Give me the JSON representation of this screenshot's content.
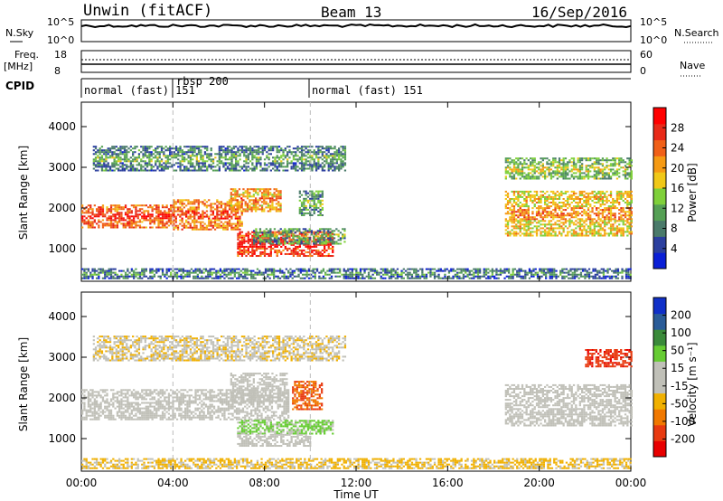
{
  "header": {
    "site": "Unwin (fitACF)",
    "beam": "Beam 13",
    "date": "16/Sep/2016"
  },
  "nsky": {
    "label": "N.Sky",
    "right_label": "N.Search",
    "left_ticks": [
      "10^5",
      "10^0"
    ],
    "right_ticks": [
      "10^5",
      "10^0"
    ]
  },
  "freq": {
    "label_line1": "Freq.",
    "label_line2": "[MHz]",
    "left_ticks": [
      "18",
      "8"
    ],
    "right_ticks": [
      "60",
      "0"
    ],
    "right_label": "Nave"
  },
  "cpid": {
    "label": "CPID",
    "segments": [
      {
        "text": "normal (fast) 151"
      },
      {
        "text": "rbsp 200"
      },
      {
        "text": "normal (fast) 151"
      }
    ]
  },
  "colors": {
    "power_scale": [
      "#0a1fd6",
      "#2b3f9e",
      "#4a7a6a",
      "#55a055",
      "#7fd03a",
      "#f0c818",
      "#f59a14",
      "#f06018",
      "#e82a18",
      "#ff0000"
    ],
    "velocity_scale": [
      "#1030c8",
      "#2a5c98",
      "#3a8a3a",
      "#66cc33",
      "#c0c0b8",
      "#c0c0b8",
      "#f0b000",
      "#f07800",
      "#e83a10",
      "#e80000"
    ]
  },
  "chart_data": [
    {
      "type": "heatmap",
      "name": "power",
      "xlabel": "",
      "ylabel": "Slant Range [km]",
      "x_ticks": [
        "00:00",
        "04:00",
        "08:00",
        "12:00",
        "16:00",
        "20:00",
        "00:00"
      ],
      "y_ticks": [
        "1000",
        "2000",
        "3000",
        "4000"
      ],
      "ylim": [
        200,
        4600
      ],
      "xlim": [
        0,
        24
      ],
      "colorbar": {
        "label": "Power [dB]",
        "ticks": [
          "4",
          "8",
          "12",
          "16",
          "20",
          "24",
          "28"
        ],
        "range": [
          0,
          32
        ]
      },
      "regions": [
        {
          "t0": 0.0,
          "t1": 4.0,
          "r0": 1500,
          "r1": 2050,
          "v": 24
        },
        {
          "t0": 4.0,
          "t1": 7.0,
          "r0": 1450,
          "r1": 2200,
          "v": 22
        },
        {
          "t0": 6.5,
          "t1": 8.7,
          "r0": 1900,
          "r1": 2450,
          "v": 20
        },
        {
          "t0": 6.8,
          "t1": 11.0,
          "r0": 800,
          "r1": 1400,
          "v": 26
        },
        {
          "t0": 7.5,
          "t1": 11.5,
          "r0": 1100,
          "r1": 1500,
          "v": 10
        },
        {
          "t0": 9.5,
          "t1": 10.5,
          "r0": 1800,
          "r1": 2400,
          "v": 10
        },
        {
          "t0": 0.5,
          "t1": 11.5,
          "r0": 2900,
          "r1": 3500,
          "v": 8
        },
        {
          "t0": 0.0,
          "t1": 24.0,
          "r0": 250,
          "r1": 500,
          "v": 6
        },
        {
          "t0": 18.5,
          "t1": 24.0,
          "r0": 1300,
          "r1": 2400,
          "v": 18
        },
        {
          "t0": 18.5,
          "t1": 24.0,
          "r0": 2700,
          "r1": 3200,
          "v": 12
        }
      ]
    },
    {
      "type": "heatmap",
      "name": "velocity",
      "xlabel": "Time UT",
      "ylabel": "Slant Range [km]",
      "x_ticks": [
        "00:00",
        "04:00",
        "08:00",
        "12:00",
        "16:00",
        "20:00",
        "00:00"
      ],
      "y_ticks": [
        "1000",
        "2000",
        "3000",
        "4000"
      ],
      "ylim": [
        200,
        4600
      ],
      "xlim": [
        0,
        24
      ],
      "colorbar": {
        "label": "Velocity [m s⁻¹]",
        "ticks": [
          "200",
          "100",
          "50",
          "15",
          "-15",
          "-50",
          "-100",
          "-200"
        ],
        "range": [
          -250,
          250
        ]
      },
      "regions": [
        {
          "t0": 0.0,
          "t1": 9.0,
          "r0": 1450,
          "r1": 2200,
          "v": 0
        },
        {
          "t0": 6.5,
          "t1": 9.0,
          "r0": 1900,
          "r1": 2600,
          "v": 0
        },
        {
          "t0": 6.8,
          "t1": 11.0,
          "r0": 1100,
          "r1": 1450,
          "v": 60
        },
        {
          "t0": 6.8,
          "t1": 10.0,
          "r0": 800,
          "r1": 1100,
          "v": 0
        },
        {
          "t0": 9.2,
          "t1": 10.5,
          "r0": 1700,
          "r1": 2400,
          "v": -150
        },
        {
          "t0": 0.0,
          "t1": 24.0,
          "r0": 250,
          "r1": 500,
          "v": -60
        },
        {
          "t0": 18.5,
          "t1": 24.0,
          "r0": 1300,
          "r1": 2300,
          "v": 0
        },
        {
          "t0": 22.0,
          "t1": 24.0,
          "r0": 2750,
          "r1": 3200,
          "v": -180
        },
        {
          "t0": 0.5,
          "t1": 11.5,
          "r0": 2900,
          "r1": 3500,
          "v": -40
        }
      ]
    }
  ]
}
